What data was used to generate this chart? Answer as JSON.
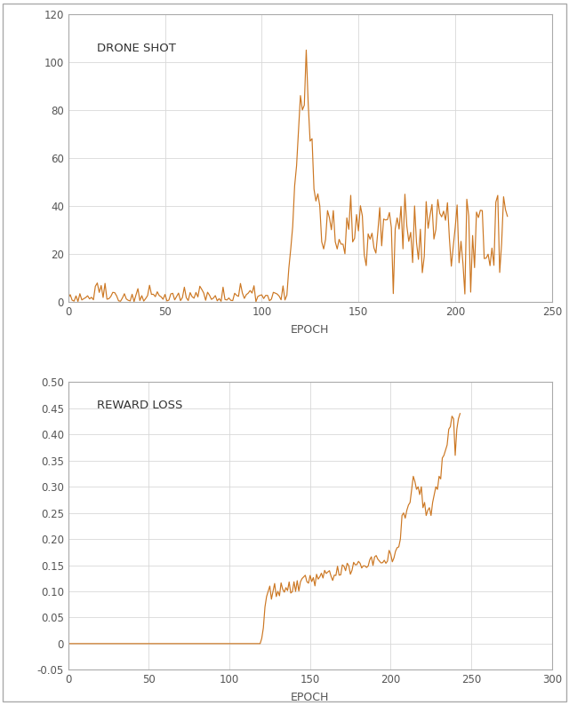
{
  "line_color": "#CC7722",
  "background_color": "#FFFFFF",
  "grid_color": "#D8D8D8",
  "border_color": "#AAAAAA",
  "title1": "DRONE SHOT",
  "title2": "REWARD LOSS",
  "xlabel": "EPOCH",
  "plot1": {
    "xlim": [
      0,
      250
    ],
    "ylim": [
      0,
      120
    ],
    "yticks": [
      0,
      20,
      40,
      60,
      80,
      100,
      120
    ],
    "xticks": [
      0,
      50,
      100,
      150,
      200,
      250
    ]
  },
  "plot2": {
    "xlim": [
      0,
      300
    ],
    "ylim": [
      -0.05,
      0.5
    ],
    "yticks": [
      -0.05,
      0.0,
      0.05,
      0.1,
      0.15,
      0.2,
      0.25,
      0.3,
      0.35,
      0.4,
      0.45,
      0.5
    ],
    "xticks": [
      0,
      50,
      100,
      150,
      200,
      250,
      300
    ]
  }
}
